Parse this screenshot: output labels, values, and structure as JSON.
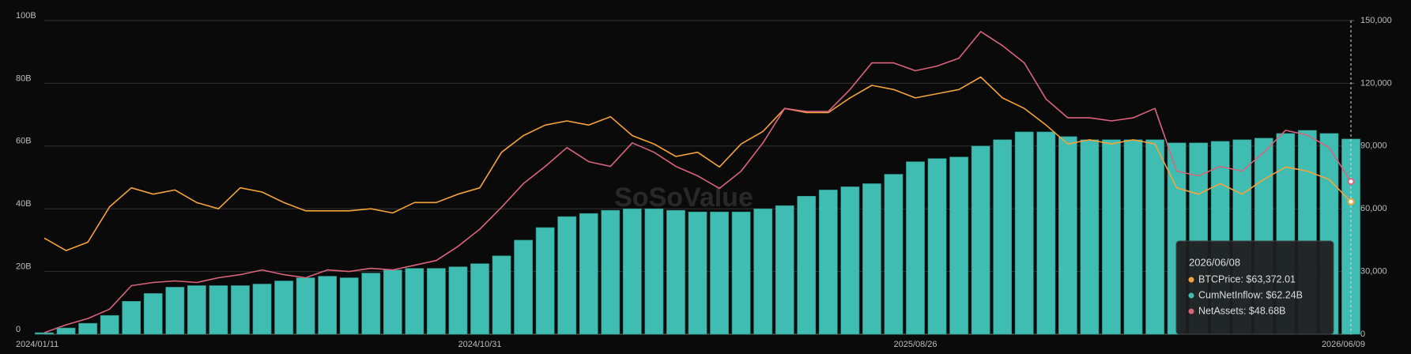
{
  "chart_data": {
    "type": "combo",
    "watermark": "SoSoValue",
    "categories": [
      "2024/01/11",
      null,
      null,
      null,
      null,
      null,
      null,
      null,
      null,
      null,
      null,
      null,
      null,
      null,
      null,
      null,
      null,
      null,
      null,
      null,
      "2024/10/31",
      null,
      null,
      null,
      null,
      null,
      null,
      null,
      null,
      null,
      null,
      null,
      null,
      null,
      null,
      null,
      null,
      null,
      null,
      null,
      "2025/08/26",
      null,
      null,
      null,
      null,
      null,
      null,
      null,
      null,
      null,
      null,
      null,
      null,
      null,
      null,
      null,
      null,
      null,
      null,
      null,
      "2026/06/09"
    ],
    "series": [
      {
        "name": "CumNetInflow",
        "type": "bar",
        "color": "#3fbdb2",
        "values": [
          0.5,
          2,
          3.5,
          6,
          10.5,
          13,
          15,
          15.5,
          15.5,
          15.5,
          16,
          17,
          18,
          18.5,
          18,
          19.5,
          20.5,
          21,
          21,
          21.5,
          22.5,
          25,
          30,
          34,
          37.5,
          38.5,
          39.5,
          40,
          40,
          39.5,
          39,
          39,
          39,
          40,
          41,
          44,
          46,
          47,
          48,
          51,
          55,
          56,
          56.5,
          60,
          62,
          64.5,
          64.5,
          63,
          62,
          62,
          62,
          62,
          61,
          61,
          61.5,
          62,
          62.5,
          64,
          65,
          64,
          62.24
        ]
      },
      {
        "name": "BTCPrice",
        "type": "line",
        "axis": "y2",
        "color": "#f5a33b",
        "values": [
          46000,
          40000,
          44000,
          61000,
          70000,
          67000,
          69000,
          63000,
          60000,
          70000,
          68000,
          63000,
          59000,
          59000,
          59000,
          60000,
          58000,
          63000,
          63000,
          67000,
          70000,
          87000,
          95000,
          100000,
          102000,
          100000,
          104000,
          95000,
          91000,
          85000,
          87000,
          80000,
          91000,
          97000,
          108000,
          106000,
          106000,
          113000,
          119000,
          117000,
          113000,
          115000,
          117000,
          123000,
          113000,
          108000,
          100000,
          91000,
          93000,
          91000,
          93000,
          91000,
          70000,
          67000,
          72000,
          67000,
          74000,
          80000,
          78000,
          74000,
          63372.01
        ]
      },
      {
        "name": "NetAssets",
        "type": "line",
        "color": "#d9647c",
        "values": [
          0.5,
          3,
          5,
          8,
          15.5,
          16.5,
          17,
          16.5,
          18,
          19,
          20.5,
          19,
          18,
          20.5,
          20,
          21,
          20.5,
          22,
          23.5,
          28,
          33.5,
          40.5,
          48,
          53.5,
          59.5,
          55,
          53.5,
          61,
          58,
          53.5,
          50.5,
          46.5,
          52,
          61,
          72,
          71,
          71,
          78,
          86.5,
          86.5,
          84,
          85.5,
          88,
          96.5,
          92,
          86.5,
          75,
          69,
          69,
          68,
          69,
          72,
          52,
          50.5,
          53.5,
          52,
          58,
          65,
          63.5,
          59.5,
          48.68
        ]
      }
    ],
    "ylim": [
      0,
      100
    ],
    "yticks": [
      0,
      {
        "value": 20,
        "label": "20B"
      },
      {
        "value": 40,
        "label": "40B"
      },
      {
        "value": 60,
        "label": "60B"
      },
      {
        "value": 80,
        "label": "80B"
      },
      {
        "value": 100,
        "label": "100B"
      }
    ],
    "y2lim": [
      0,
      150000
    ],
    "y2ticks": [
      0,
      {
        "value": 30000,
        "label": "30,000"
      },
      {
        "value": 60000,
        "label": "60,000"
      },
      {
        "value": 90000,
        "label": "90,000"
      },
      {
        "value": 120000,
        "label": "120,000"
      },
      {
        "value": 150000,
        "label": "150,000"
      }
    ],
    "grid": true,
    "tooltip": {
      "date": "2026/06/08",
      "items": [
        "BTCPrice: $63,372.01",
        "CumNetInflow: $62.24B",
        "NetAssets: $48.68B"
      ]
    }
  }
}
